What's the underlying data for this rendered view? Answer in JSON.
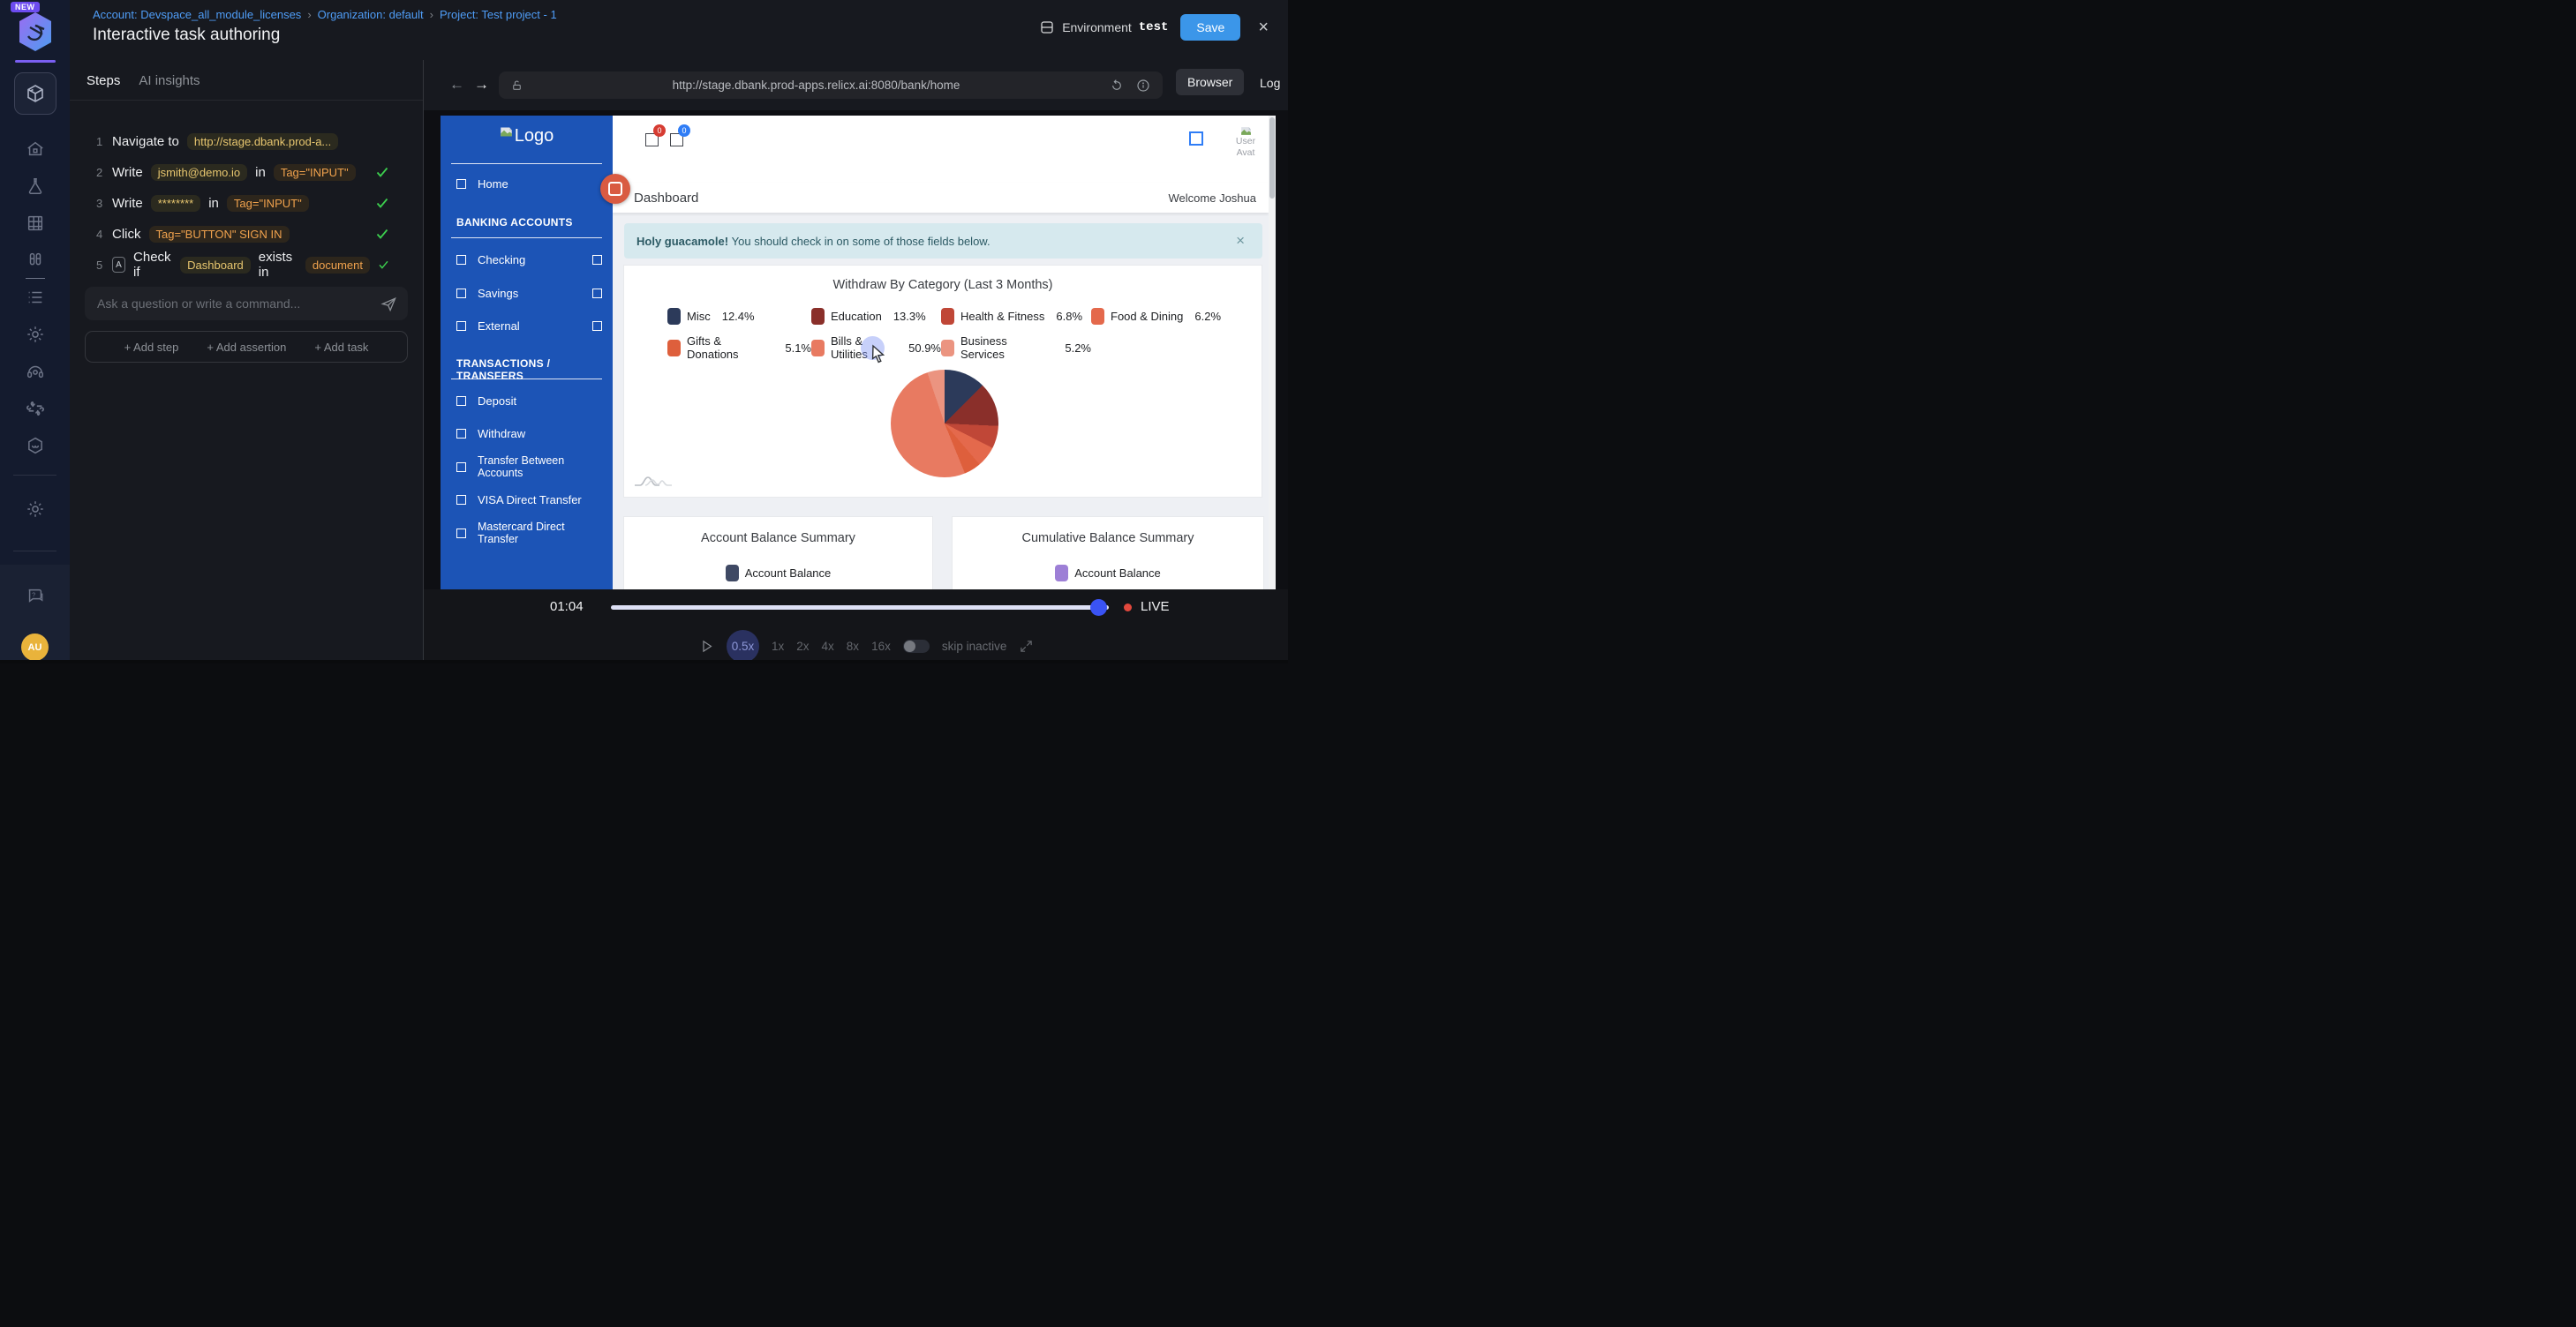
{
  "app": {
    "new_badge": "NEW",
    "breadcrumb": [
      "Account: Devspace_all_module_licenses",
      "Organization: default",
      "Project: Test project - 1"
    ],
    "title": "Interactive task authoring",
    "environment": {
      "label": "Environment",
      "value": "test"
    },
    "save": "Save",
    "avatar_initials": "AU"
  },
  "steps_panel": {
    "tabs": {
      "steps": "Steps",
      "insights": "AI insights"
    },
    "steps": [
      {
        "num": "1",
        "action": "Navigate to",
        "badge1": "http://stage.dbank.prod-a..."
      },
      {
        "num": "2",
        "action": "Write",
        "badge1": "jsmith@demo.io",
        "mid": "in",
        "badge2": "Tag=\"INPUT\""
      },
      {
        "num": "3",
        "action": "Write",
        "badge1": "********",
        "mid": "in",
        "badge2": "Tag=\"INPUT\""
      },
      {
        "num": "4",
        "action": "Click",
        "badge1": "Tag=\"BUTTON\" SIGN IN"
      },
      {
        "num": "5",
        "assert_glyph": "A",
        "action": "Check if",
        "badge1": "Dashboard",
        "mid": "exists in",
        "badge2": "document"
      }
    ],
    "input_placeholder": "Ask a question or write a command...",
    "add_buttons": [
      "+ Add step",
      "+ Add assertion",
      "+ Add task"
    ]
  },
  "browser": {
    "url": "http://stage.dbank.prod-apps.relicx.ai:8080/bank/home",
    "tabs": {
      "browser": "Browser",
      "log": "Log"
    }
  },
  "bank": {
    "logo": "Logo",
    "nav_home": "Home",
    "section1": "BANKING ACCOUNTS",
    "accounts": [
      "Checking",
      "Savings",
      "External"
    ],
    "section2": "TRANSACTIONS / TRANSFERS",
    "transactions": [
      "Deposit",
      "Withdraw",
      "Transfer Between Accounts",
      "VISA Direct Transfer",
      "Mastercard Direct Transfer"
    ],
    "header": {
      "badge_red": "0",
      "badge_blue": "0",
      "avatar_line1": "User",
      "avatar_line2": "Avat"
    },
    "dashboard_title": "Dashboard",
    "welcome": "Welcome Joshua",
    "alert": {
      "bold": "Holy guacamole!",
      "text": "You should check in on some of those fields below."
    }
  },
  "chart_data": [
    {
      "type": "pie",
      "title": "Withdraw By Category (Last 3 Months)",
      "labels": [
        "Misc",
        "Education",
        "Health & Fitness",
        "Food & Dining",
        "Gifts & Donations",
        "Bills & Utilities",
        "Business Services"
      ],
      "values": [
        12.4,
        13.3,
        6.8,
        6.2,
        5.1,
        50.9,
        5.2
      ],
      "colors": [
        "#2c3a5a",
        "#8a2f2a",
        "#c04737",
        "#e4694c",
        "#de5f3c",
        "#e87a61",
        "#eb9480"
      ],
      "legend_position": "top",
      "value_suffix": "%"
    },
    {
      "type": "unknown-cut-off",
      "title": "Account Balance Summary",
      "legend": [
        "Account Balance"
      ],
      "colors": [
        "#3f4964"
      ]
    },
    {
      "type": "unknown-cut-off",
      "title": "Cumulative Balance Summary",
      "legend": [
        "Account Balance"
      ],
      "colors": [
        "#9d7fd6"
      ]
    }
  ],
  "playback": {
    "time": "01:04",
    "live_label": "LIVE",
    "progress_pct": 98,
    "speeds": [
      "0.5x",
      "1x",
      "2x",
      "4x",
      "8x",
      "16x"
    ],
    "active_speed": "0.5x",
    "skip_inactive_label": "skip inactive"
  }
}
